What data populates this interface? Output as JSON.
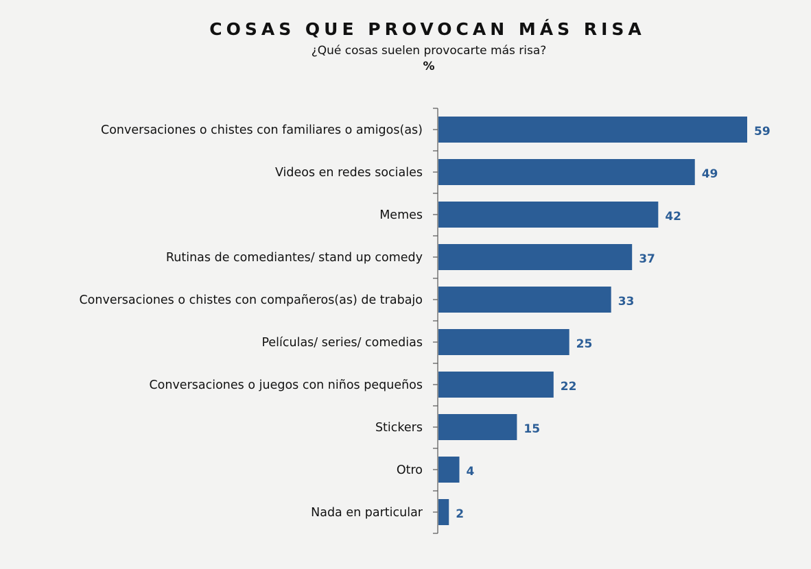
{
  "chart_data": {
    "type": "bar",
    "orientation": "horizontal",
    "title": "COSAS QUE PROVOCAN MÁS RISA",
    "subtitle": "¿Qué cosas suelen provocarte más risa?",
    "unit": "%",
    "categories": [
      "Conversaciones o chistes con familiares o amigos(as)",
      "Videos en redes sociales",
      "Memes",
      "Rutinas de comediantes/ stand up comedy",
      "Conversaciones o chistes con compañeros(as) de trabajo",
      "Películas/ series/ comedias",
      "Conversaciones o juegos con niños pequeños",
      "Stickers",
      "Otro",
      "Nada en particular"
    ],
    "values": [
      59,
      49,
      42,
      37,
      33,
      25,
      22,
      15,
      4,
      2
    ],
    "xlim": [
      0,
      59
    ],
    "grid": false,
    "bar_color": "#2b5d96"
  }
}
